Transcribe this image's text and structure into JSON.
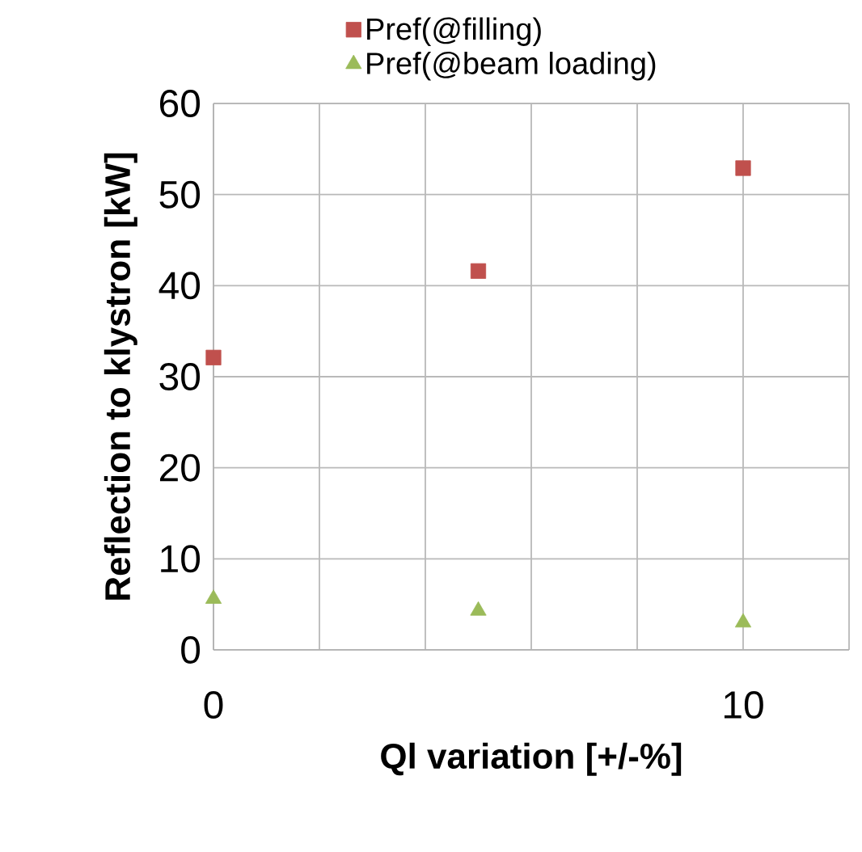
{
  "chart_data": {
    "type": "scatter",
    "xlabel": "Ql variation [+/-%]",
    "ylabel": "Reflection  to klystron [kW]",
    "xlim": [
      0,
      12
    ],
    "xticks": [
      0,
      {
        "value": 2,
        "label": null
      },
      {
        "value": 4,
        "label": null
      },
      {
        "value": 6,
        "label": null
      },
      {
        "value": 8,
        "label": null
      },
      10,
      {
        "value": 12,
        "label": null
      }
    ],
    "ylim": [
      0,
      60
    ],
    "yticks": [
      0,
      10,
      20,
      30,
      40,
      50,
      60
    ],
    "grid": true,
    "legend": "top",
    "series": [
      {
        "name": "Pref(@filling)",
        "color": "#c0504d",
        "marker": "square",
        "x": [
          0,
          5,
          10
        ],
        "values": [
          32.1,
          41.6,
          52.9
        ]
      },
      {
        "name": "Pref(@beam loading)",
        "color": "#9bbb59",
        "marker": "triangle",
        "x": [
          0,
          5,
          10
        ],
        "values": [
          5.6,
          4.3,
          3.0
        ]
      }
    ]
  }
}
